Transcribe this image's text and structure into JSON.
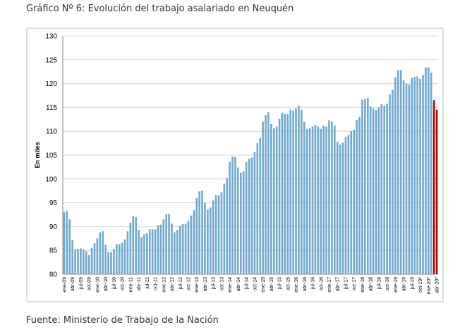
{
  "title": "Gráfico Nº 6: Evolución del trabajo asalariado en Neuquén",
  "source": "Fuente: Ministerio de Trabajo de la Nación",
  "chart_data": {
    "type": "bar",
    "y_label": "En miles",
    "categories": [
      "ene-09",
      null,
      null,
      "abr-09",
      null,
      null,
      "jul-09",
      null,
      null,
      "oct-09",
      null,
      null,
      "ene-10",
      null,
      null,
      "abr-10",
      null,
      null,
      "jul-10",
      null,
      null,
      "oct-10",
      null,
      null,
      "ene-11",
      null,
      null,
      "abr-11",
      null,
      null,
      "jul-11",
      null,
      null,
      "oct-11",
      null,
      null,
      "ene-12",
      null,
      null,
      "abr-12",
      null,
      null,
      "jul-12",
      null,
      null,
      "oct-12",
      null,
      null,
      "ene-13",
      null,
      null,
      "abr-13",
      null,
      null,
      "jul-13",
      null,
      null,
      "oct-13",
      null,
      null,
      "ene-14",
      null,
      null,
      "abr-14",
      null,
      null,
      "jul-14",
      null,
      null,
      "oct-14",
      null,
      null,
      "ene-15",
      null,
      null,
      "abr-15",
      null,
      null,
      "jul-15",
      null,
      null,
      "oct-15",
      null,
      null,
      "ene-16",
      null,
      null,
      "abr-16",
      null,
      null,
      "jul-16",
      null,
      null,
      "oct-16",
      null,
      null,
      "ene-17",
      null,
      null,
      "abr-17",
      null,
      null,
      "jul-17",
      null,
      null,
      "oct-17",
      null,
      null,
      "ene-18",
      null,
      null,
      "abr-18",
      null,
      null,
      "jul-18",
      null,
      null,
      "oct-18",
      null,
      null,
      "ene-19",
      null,
      null,
      "abr-19",
      null,
      null,
      "jul-19",
      null,
      null,
      "oct-19*",
      null,
      null,
      "ene-20*",
      null,
      null,
      "abr-20*"
    ],
    "values": [
      93.0,
      93.3,
      91.5,
      87.2,
      85.2,
      85.3,
      85.4,
      85.2,
      84.8,
      84.0,
      85.5,
      86.5,
      87.5,
      88.8,
      89.0,
      86.2,
      84.6,
      84.6,
      85.3,
      86.3,
      86.3,
      86.6,
      87.3,
      89.0,
      90.8,
      92.2,
      92.0,
      89.3,
      87.8,
      88.4,
      88.6,
      89.4,
      89.4,
      89.4,
      90.3,
      90.4,
      91.5,
      92.6,
      92.7,
      90.6,
      88.8,
      89.3,
      90.2,
      90.5,
      90.6,
      91.2,
      92.3,
      93.4,
      96.0,
      97.4,
      97.5,
      95.0,
      93.6,
      94.0,
      95.5,
      96.6,
      96.5,
      97.2,
      99.0,
      100.2,
      103.6,
      104.7,
      104.6,
      102.4,
      101.3,
      101.6,
      103.5,
      104.2,
      104.5,
      105.6,
      107.5,
      108.6,
      112.0,
      113.4,
      114.0,
      111.5,
      110.6,
      111.0,
      112.6,
      113.9,
      113.6,
      113.6,
      114.5,
      114.3,
      114.8,
      115.4,
      114.5,
      112.0,
      110.5,
      110.6,
      111.0,
      111.3,
      111.0,
      110.5,
      111.2,
      111.0,
      112.3,
      112.0,
      111.2,
      107.8,
      107.2,
      107.6,
      108.8,
      109.2,
      110.0,
      110.3,
      112.4,
      113.0,
      116.6,
      116.8,
      117.0,
      115.2,
      114.8,
      114.5,
      115.0,
      115.7,
      115.4,
      115.8,
      117.7,
      118.7,
      121.3,
      122.8,
      122.8,
      120.7,
      120.0,
      119.8,
      121.2,
      121.4,
      121.5,
      121.0,
      121.8,
      123.4,
      123.4,
      122.3,
      116.5,
      114.5
    ],
    "colors": [
      "#6fa8d0",
      "#6fa8d0",
      "#6fa8d0",
      "#6fa8d0",
      "#6fa8d0",
      "#6fa8d0",
      "#6fa8d0",
      "#6fa8d0",
      "#6fa8d0",
      "#6fa8d0",
      "#6fa8d0",
      "#6fa8d0",
      "#6fa8d0",
      "#6fa8d0",
      "#6fa8d0",
      "#6fa8d0",
      "#6fa8d0",
      "#6fa8d0",
      "#6fa8d0",
      "#6fa8d0",
      "#6fa8d0",
      "#6fa8d0",
      "#6fa8d0",
      "#6fa8d0",
      "#6fa8d0",
      "#6fa8d0",
      "#6fa8d0",
      "#6fa8d0",
      "#6fa8d0",
      "#6fa8d0",
      "#6fa8d0",
      "#6fa8d0",
      "#6fa8d0",
      "#6fa8d0",
      "#6fa8d0",
      "#6fa8d0",
      "#6fa8d0",
      "#6fa8d0",
      "#6fa8d0",
      "#6fa8d0",
      "#6fa8d0",
      "#6fa8d0",
      "#6fa8d0",
      "#6fa8d0",
      "#6fa8d0",
      "#6fa8d0",
      "#6fa8d0",
      "#6fa8d0",
      "#6fa8d0",
      "#6fa8d0",
      "#6fa8d0",
      "#6fa8d0",
      "#6fa8d0",
      "#6fa8d0",
      "#6fa8d0",
      "#6fa8d0",
      "#6fa8d0",
      "#6fa8d0",
      "#6fa8d0",
      "#6fa8d0",
      "#6fa8d0",
      "#6fa8d0",
      "#6fa8d0",
      "#6fa8d0",
      "#6fa8d0",
      "#6fa8d0",
      "#6fa8d0",
      "#6fa8d0",
      "#6fa8d0",
      "#6fa8d0",
      "#6fa8d0",
      "#6fa8d0",
      "#6fa8d0",
      "#6fa8d0",
      "#6fa8d0",
      "#6fa8d0",
      "#6fa8d0",
      "#6fa8d0",
      "#6fa8d0",
      "#6fa8d0",
      "#6fa8d0",
      "#6fa8d0",
      "#6fa8d0",
      "#6fa8d0",
      "#6fa8d0",
      "#6fa8d0",
      "#6fa8d0",
      "#6fa8d0",
      "#6fa8d0",
      "#6fa8d0",
      "#6fa8d0",
      "#6fa8d0",
      "#6fa8d0",
      "#6fa8d0",
      "#6fa8d0",
      "#6fa8d0",
      "#6fa8d0",
      "#6fa8d0",
      "#6fa8d0",
      "#6fa8d0",
      "#6fa8d0",
      "#6fa8d0",
      "#6fa8d0",
      "#6fa8d0",
      "#6fa8d0",
      "#6fa8d0",
      "#6fa8d0",
      "#6fa8d0",
      "#6fa8d0",
      "#6fa8d0",
      "#6fa8d0",
      "#6fa8d0",
      "#6fa8d0",
      "#6fa8d0",
      "#6fa8d0",
      "#6fa8d0",
      "#6fa8d0",
      "#6fa8d0",
      "#6fa8d0",
      "#6fa8d0",
      "#6fa8d0",
      "#6fa8d0",
      "#6fa8d0",
      "#6fa8d0",
      "#6fa8d0",
      "#6fa8d0",
      "#6fa8d0",
      "#6fa8d0",
      "#6fa8d0",
      "#6fa8d0",
      "#6fa8d0",
      "#6fa8d0",
      "#6fa8d0",
      "#6fa8d0",
      "#c00000",
      "#c00000"
    ],
    "ylim": [
      80,
      130
    ],
    "yticks": [
      80,
      85,
      90,
      95,
      100,
      105,
      110,
      115,
      120,
      125,
      130
    ],
    "grid": true
  }
}
